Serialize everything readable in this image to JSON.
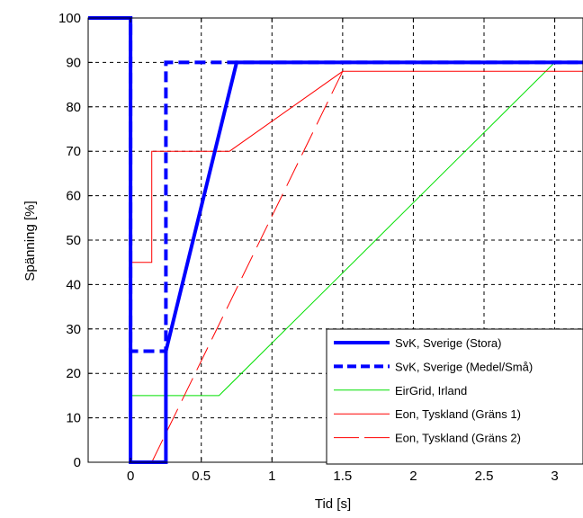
{
  "chart_data": {
    "type": "line",
    "xlabel": "Tid [s]",
    "ylabel": "Spänning [%]",
    "xlim": [
      -0.3,
      3.2
    ],
    "ylim": [
      0,
      100
    ],
    "xticks": [
      0,
      0.5,
      1,
      1.5,
      2,
      2.5,
      3
    ],
    "xtick_labels": [
      "0",
      "0.5",
      "1",
      "1.5",
      "2",
      "2.5",
      "3"
    ],
    "yticks": [
      0,
      10,
      20,
      30,
      40,
      50,
      60,
      70,
      80,
      90,
      100
    ],
    "ytick_labels": [
      "0",
      "10",
      "20",
      "30",
      "40",
      "50",
      "60",
      "70",
      "80",
      "90",
      "100"
    ],
    "grid": true,
    "legend_position": "bottom-right",
    "series": [
      {
        "name": "SvK, Sverige (Stora)",
        "color": "#0000ff",
        "style": "solid",
        "width": 4,
        "x": [
          -0.3,
          0,
          0,
          0.25,
          0.25,
          0.75,
          3.2
        ],
        "y": [
          100,
          100,
          0,
          0,
          25,
          90,
          90
        ]
      },
      {
        "name": "SvK, Sverige (Medel/Små)",
        "color": "#0000ff",
        "style": "dashed",
        "width": 4,
        "x": [
          -0.3,
          0,
          0,
          0.25,
          0.25,
          3.2
        ],
        "y": [
          100,
          100,
          25,
          25,
          90,
          90
        ]
      },
      {
        "name": "EirGrid, Irland",
        "color": "#00e000",
        "style": "solid",
        "width": 1,
        "x": [
          -0.3,
          0,
          0,
          0.625,
          3.0,
          3.2
        ],
        "y": [
          100,
          100,
          15,
          15,
          90,
          90
        ]
      },
      {
        "name": "Eon, Tyskland (Gräns 1)",
        "color": "#ff0000",
        "style": "solid",
        "width": 1,
        "x": [
          -0.3,
          0,
          0,
          0.15,
          0.15,
          0.7,
          1.5,
          3.2
        ],
        "y": [
          100,
          100,
          45,
          45,
          70,
          70,
          88,
          88
        ]
      },
      {
        "name": "Eon, Tyskland (Gräns 2)",
        "color": "#ff0000",
        "style": "longdash",
        "width": 1,
        "x": [
          0.15,
          1.5
        ],
        "y": [
          0,
          88
        ]
      }
    ]
  }
}
